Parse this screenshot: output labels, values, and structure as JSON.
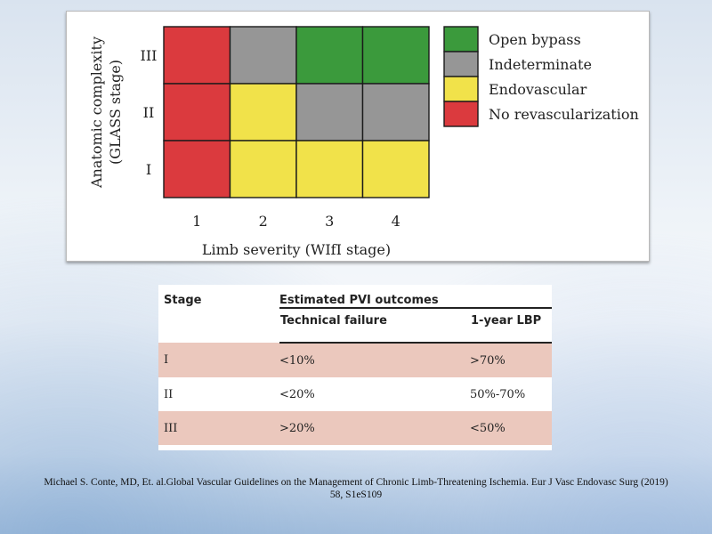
{
  "chart_data": {
    "type": "heatmap",
    "xlabel": "Limb severity (WIfI stage)",
    "ylabel_lines": [
      "Anatomic complexity",
      "(GLASS stage)"
    ],
    "x_categories": [
      "1",
      "2",
      "3",
      "4"
    ],
    "y_categories": [
      "III",
      "II",
      "I"
    ],
    "cells": [
      [
        "No revascularization",
        "Indeterminate",
        "Open bypass",
        "Open bypass"
      ],
      [
        "No revascularization",
        "Endovascular",
        "Indeterminate",
        "Indeterminate"
      ],
      [
        "No revascularization",
        "Endovascular",
        "Endovascular",
        "Endovascular"
      ]
    ],
    "legend": [
      {
        "label": "Open bypass",
        "color": "#3b9a3c"
      },
      {
        "label": "Indeterminate",
        "color": "#969696"
      },
      {
        "label": "Endovascular",
        "color": "#f1e24a"
      },
      {
        "label": "No revascularization",
        "color": "#db3a3e"
      }
    ],
    "legend_placement": "right"
  },
  "table": {
    "stage_header": "Stage",
    "group_header": "Estimated PVI outcomes",
    "col_tech": "Technical failure",
    "col_lbp": "1-year LBP",
    "rows": [
      {
        "stage": "I",
        "tech": "<10%",
        "lbp": ">70%"
      },
      {
        "stage": "II",
        "tech": "<20%",
        "lbp": "50%-70%"
      },
      {
        "stage": "III",
        "tech": ">20%",
        "lbp": "<50%"
      }
    ],
    "shaded_color": "#ebc8bd"
  },
  "citation": {
    "line1": "Michael S. Conte, MD, Et. al.Global  Vascular Guidelines  on the Management of Chronic Limb-Threatening  Ischemia. Eur J Vasc Endovasc Surg (2019)",
    "line2": "58,  S1eS109"
  }
}
